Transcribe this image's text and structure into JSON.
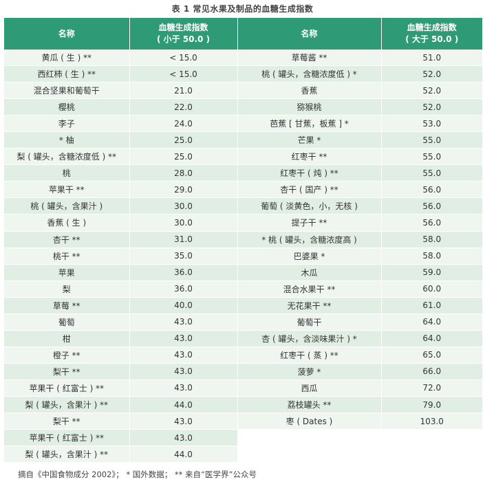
{
  "title": "表 1  常见水果及制品的血糖生成指数",
  "headers": {
    "left_name": "名称",
    "left_gi_line1": "血糖生成指数",
    "left_gi_line2": "( 小于 50.0 )",
    "right_name": "名称",
    "right_gi_line1": "血糖生成指数",
    "right_gi_line2": "( 大于 50.0 )"
  },
  "rows": [
    {
      "ln": "黄瓜 ( 生 ) **",
      "lv": "< 15.0",
      "rn": "草莓酱 **",
      "rv": "51.0"
    },
    {
      "ln": "西红柿 ( 生 ) **",
      "lv": "< 15.0",
      "rn": "桃 ( 罐头，含糖浓度低 ) *",
      "rv": "52.0"
    },
    {
      "ln": "混合坚果和葡萄干",
      "lv": "21.0",
      "rn": "香蕉",
      "rv": "52.0"
    },
    {
      "ln": "樱桃",
      "lv": "22.0",
      "rn": "猕猴桃",
      "rv": "52.0"
    },
    {
      "ln": "李子",
      "lv": "24.0",
      "rn": "芭蕉 [ 甘蕉，板蕉 ] *",
      "rv": "53.0"
    },
    {
      "ln": "* 柚",
      "lv": "25.0",
      "rn": "芒果 *",
      "rv": "55.0"
    },
    {
      "ln": "梨 ( 罐头，含糖浓度低 ) **",
      "lv": "25.0",
      "rn": "红枣干 **",
      "rv": "55.0"
    },
    {
      "ln": "桃",
      "lv": "28.0",
      "rn": "红枣干 ( 炖 ) **",
      "rv": "55.0"
    },
    {
      "ln": "苹果干 **",
      "lv": "29.0",
      "rn": "杏干 ( 国产 ) **",
      "rv": "56.0"
    },
    {
      "ln": "桃 ( 罐头，含果汁 )",
      "lv": "30.0",
      "rn": "葡萄 ( 淡黄色，小，无核 )",
      "rv": "56.0"
    },
    {
      "ln": "香蕉 ( 生 )",
      "lv": "30.0",
      "rn": "提子干 **",
      "rv": "56.0"
    },
    {
      "ln": "杏干 **",
      "lv": "31.0",
      "rn": "* 桃 ( 罐头，含糖浓度高 )",
      "rv": "58.0"
    },
    {
      "ln": "桃干 **",
      "lv": "35.0",
      "rn": "巴婆果 *",
      "rv": "58.0"
    },
    {
      "ln": "苹果",
      "lv": "36.0",
      "rn": "木瓜",
      "rv": "59.0"
    },
    {
      "ln": "梨",
      "lv": "36.0",
      "rn": "混合水果干 **",
      "rv": "60.0"
    },
    {
      "ln": "草莓 **",
      "lv": "40.0",
      "rn": "无花果干 **",
      "rv": "61.0"
    },
    {
      "ln": "葡萄",
      "lv": "43.0",
      "rn": "葡萄干",
      "rv": "64.0"
    },
    {
      "ln": "柑",
      "lv": "43.0",
      "rn": "杏 ( 罐头，含淡味果汁 ) *",
      "rv": "64.0"
    },
    {
      "ln": "橙子 **",
      "lv": "43.0",
      "rn": "红枣干 ( 蒸 ) **",
      "rv": "65.0"
    },
    {
      "ln": "梨干 **",
      "lv": "43.0",
      "rn": "菠萝 *",
      "rv": "66.0"
    },
    {
      "ln": "苹果干 ( 红富士 ) **",
      "lv": "43.0",
      "rn": "西瓜",
      "rv": "72.0"
    },
    {
      "ln": "梨 ( 罐头，含果汁 ) **",
      "lv": "44.0",
      "rn": "荔枝罐头 **",
      "rv": "79.0"
    },
    {
      "ln": "梨干 **",
      "lv": "43.0",
      "rn": "枣 ( Dates )",
      "rv": "103.0"
    },
    {
      "ln": "苹果干 ( 红富士 ) **",
      "lv": "43.0",
      "rn": "",
      "rv": ""
    },
    {
      "ln": "梨 ( 罐头，含果汁 ) **",
      "lv": "44.0",
      "rn": "",
      "rv": ""
    }
  ],
  "footer": "摘自《中国食物成分 2002》； * 国外数据； ** 来自“医学界”公众号",
  "colors": {
    "header_bg": "#2e9b76",
    "row_light": "#eef6ef",
    "row_dark": "#e1eee3"
  }
}
